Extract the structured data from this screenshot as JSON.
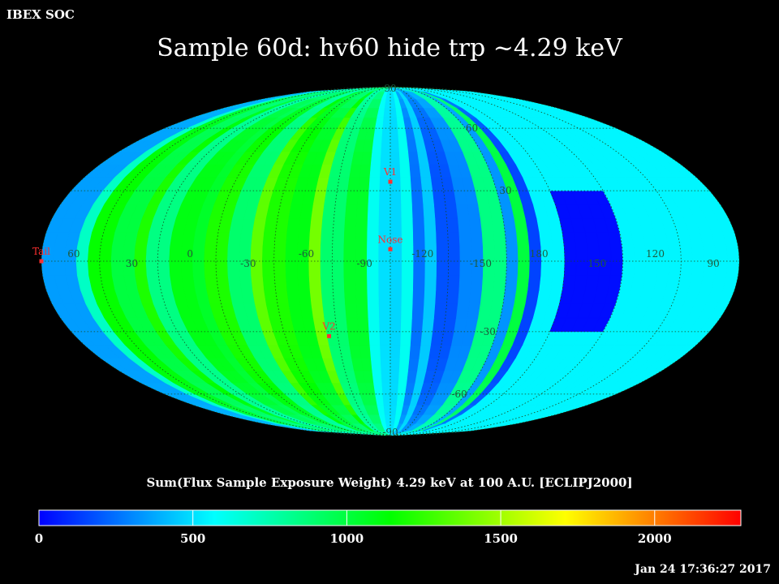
{
  "header": {
    "org": "IBEX SOC",
    "title": "Sample 60d: hv60 hide trp ~4.29 keV",
    "timestamp": "Jan 24 17:36:27 2017"
  },
  "chart_data": {
    "type": "heatmap",
    "projection": "mollweide",
    "title": "Sample 60d: hv60 hide trp ~4.29 keV",
    "colorbar_label": "Sum(Flux Sample Exposure Weight)  4.29 keV at 100 A.U. [ECLIPJ2000]",
    "colorbar_range": [
      0,
      2280
    ],
    "colorbar_ticks": [
      "0",
      "500",
      "1000",
      "1500",
      "2000"
    ],
    "colorbar_tick_values": [
      0,
      500,
      1000,
      1500,
      2000
    ],
    "colormap": [
      "#0000ff",
      "#00ffff",
      "#00ff00",
      "#ffff00",
      "#ff0000"
    ],
    "lon_labels": [
      "60",
      "30",
      "0",
      "-30",
      "-60",
      "-90",
      "-120",
      "-150",
      "180",
      "150",
      "120",
      "90"
    ],
    "lon_label_values": [
      60,
      30,
      0,
      -30,
      -60,
      -90,
      -120,
      -150,
      180,
      150,
      120,
      90
    ],
    "lat_labels": [
      "90",
      "60",
      "30",
      "-30",
      "-60",
      "-90"
    ],
    "lat_label_values": [
      90,
      60,
      30,
      -30,
      -60,
      -90
    ],
    "center_lon": -105,
    "grid": true,
    "markers": [
      {
        "label": "V1",
        "lon": -105,
        "lat": 34,
        "color": "#ff3030"
      },
      {
        "label": "Nose",
        "lon": -105,
        "lat": 5,
        "color": "#ff3030"
      },
      {
        "label": "V2",
        "lon": -70,
        "lat": -32,
        "color": "#ff3030"
      },
      {
        "label": "Tail",
        "lon": 75,
        "lat": 0,
        "color": "#ff3030"
      }
    ],
    "band_values": [
      {
        "lon_range": [
          -180,
          -175
        ],
        "value": 150
      },
      {
        "lon_range": [
          -175,
          -170
        ],
        "value": 1000
      },
      {
        "lon_range": [
          -170,
          -165
        ],
        "value": 330
      },
      {
        "lon_range": [
          -165,
          -155
        ],
        "value": 850
      },
      {
        "lon_range": [
          -155,
          -150
        ],
        "value": 950
      },
      {
        "lon_range": [
          -150,
          -140
        ],
        "value": 300
      },
      {
        "lon_range": [
          -140,
          -130
        ],
        "value": 180
      },
      {
        "lon_range": [
          -130,
          -120
        ],
        "value": 450
      },
      {
        "lon_range": [
          -120,
          -115
        ],
        "value": 250
      },
      {
        "lon_range": [
          -115,
          -110
        ],
        "value": 600
      },
      {
        "lon_range": [
          -110,
          -105
        ],
        "value": 480
      },
      {
        "lon_range": [
          -105,
          -100
        ],
        "value": 500
      },
      {
        "lon_range": [
          -100,
          -95
        ],
        "value": 600
      },
      {
        "lon_range": [
          -95,
          -90
        ],
        "value": 850
      },
      {
        "lon_range": [
          -90,
          -80
        ],
        "value": 1050
      },
      {
        "lon_range": [
          -80,
          -70
        ],
        "value": 900
      },
      {
        "lon_range": [
          -70,
          -60
        ],
        "value": 1400
      },
      {
        "lon_range": [
          -60,
          -50
        ],
        "value": 1100
      },
      {
        "lon_range": [
          -50,
          -40
        ],
        "value": 1200
      },
      {
        "lon_range": [
          -40,
          -30
        ],
        "value": 1350
      },
      {
        "lon_range": [
          -30,
          -20
        ],
        "value": 900
      },
      {
        "lon_range": [
          -20,
          -10
        ],
        "value": 1200
      },
      {
        "lon_range": [
          -10,
          0
        ],
        "value": 1050
      },
      {
        "lon_range": [
          0,
          10
        ],
        "value": 1100
      },
      {
        "lon_range": [
          10,
          20
        ],
        "value": 850
      },
      {
        "lon_range": [
          20,
          30
        ],
        "value": 1200
      },
      {
        "lon_range": [
          30,
          40
        ],
        "value": 1000
      },
      {
        "lon_range": [
          40,
          50
        ],
        "value": 1150
      },
      {
        "lon_range": [
          50,
          60
        ],
        "value": 700
      },
      {
        "lon_range": [
          60,
          75
        ],
        "value": 350
      }
    ],
    "pole_value": 550,
    "low_patch": {
      "lon_range": [
        135,
        165
      ],
      "lat_range": [
        -30,
        30
      ],
      "value": 30
    }
  }
}
